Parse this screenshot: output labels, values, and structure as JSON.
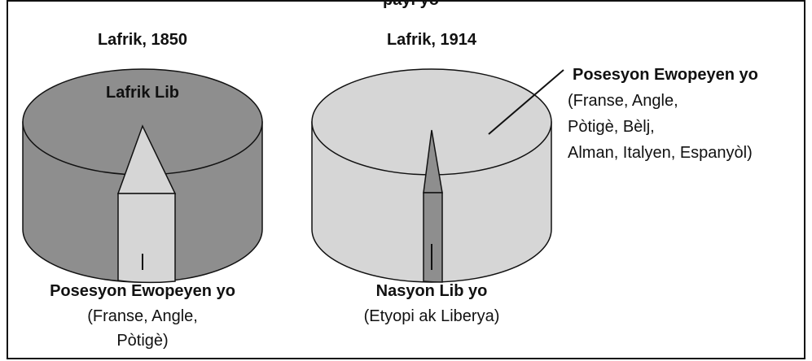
{
  "title": "payi yo",
  "left": {
    "heading": "Lafrik, 1850",
    "top_label": "Lafrik Lib",
    "caption": {
      "title": "Posesyon Ewopeyen yo",
      "lines": [
        "(Franse, Angle,",
        "Pòtigè)"
      ]
    }
  },
  "right": {
    "heading": "Lafrik, 1914",
    "caption": {
      "title": "Nasyon Lib yo",
      "lines": [
        "(Etyopi ak Liberya)"
      ]
    },
    "annotation": {
      "title": "Posesyon Ewopeyen yo",
      "lines": [
        "(Franse, Angle,",
        "Pòtigè, Bèlj,",
        "Alman, Italyen, Espanyòl)"
      ]
    }
  }
}
